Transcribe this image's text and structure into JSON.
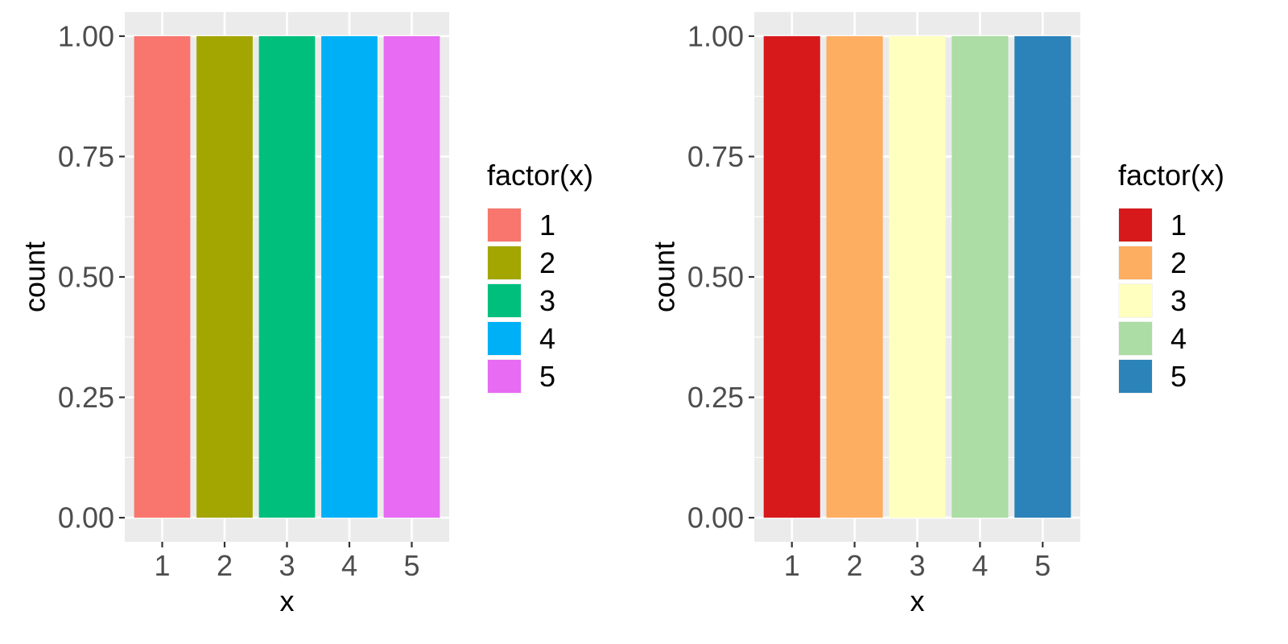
{
  "chart_data": [
    {
      "type": "bar",
      "categories": [
        "1",
        "2",
        "3",
        "4",
        "5"
      ],
      "values": [
        1,
        1,
        1,
        1,
        1
      ],
      "xlabel": "x",
      "ylabel": "count",
      "ylim": [
        0,
        1
      ],
      "yticks": [
        "0.00",
        "0.25",
        "0.50",
        "0.75",
        "1.00"
      ],
      "grid": true,
      "legend": {
        "title": "factor(x)",
        "position": "right",
        "labels": [
          "1",
          "2",
          "3",
          "4",
          "5"
        ]
      },
      "colors": [
        "#F8766D",
        "#A3A500",
        "#00BF7D",
        "#00B0F6",
        "#E76BF3"
      ]
    },
    {
      "type": "bar",
      "categories": [
        "1",
        "2",
        "3",
        "4",
        "5"
      ],
      "values": [
        1,
        1,
        1,
        1,
        1
      ],
      "xlabel": "x",
      "ylabel": "count",
      "ylim": [
        0,
        1
      ],
      "yticks": [
        "0.00",
        "0.25",
        "0.50",
        "0.75",
        "1.00"
      ],
      "grid": true,
      "legend": {
        "title": "factor(x)",
        "position": "right",
        "labels": [
          "1",
          "2",
          "3",
          "4",
          "5"
        ]
      },
      "colors": [
        "#D7191C",
        "#FDAE61",
        "#FFFFBF",
        "#ABDDA4",
        "#2B83BA"
      ]
    }
  ]
}
